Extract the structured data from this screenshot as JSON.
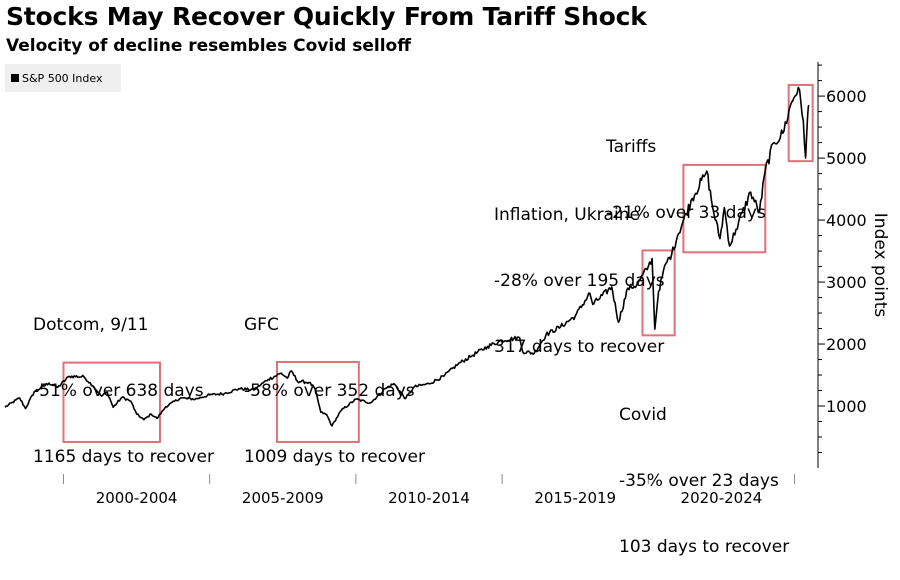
{
  "title": "Stocks May Recover Quickly From Tariff Shock",
  "subtitle": "Velocity of decline resembles Covid selloff",
  "legend": {
    "label": "S&P 500 Index",
    "color": "#000000"
  },
  "colors": {
    "line": "#000000",
    "box": "#e0707a",
    "axis": "#000000"
  },
  "chart_data": {
    "type": "line",
    "title": "Stocks May Recover Quickly From Tariff Shock",
    "subtitle": "Velocity of decline resembles Covid selloff",
    "xlabel": "",
    "ylabel": "Index points",
    "xlim": [
      1998.0,
      2025.7
    ],
    "ylim": [
      0,
      6550
    ],
    "y_ticks": [
      1000,
      2000,
      3000,
      4000,
      5000,
      6000
    ],
    "x_tick_labels": [
      {
        "label": "2000-2004",
        "center": 2002.5
      },
      {
        "label": "2005-2009",
        "center": 2007.5
      },
      {
        "label": "2010-2014",
        "center": 2012.5
      },
      {
        "label": "2015-2019",
        "center": 2017.5
      },
      {
        "label": "2020-2024",
        "center": 2022.5
      }
    ],
    "series": [
      {
        "name": "S&P 500 Index",
        "points": [
          [
            1998.0,
            980
          ],
          [
            1998.5,
            1130
          ],
          [
            1998.7,
            960
          ],
          [
            1999.0,
            1230
          ],
          [
            1999.5,
            1370
          ],
          [
            1999.8,
            1300
          ],
          [
            2000.2,
            1480
          ],
          [
            2000.7,
            1470
          ],
          [
            2001.0,
            1330
          ],
          [
            2001.3,
            1160
          ],
          [
            2001.5,
            1220
          ],
          [
            2001.7,
            980
          ],
          [
            2002.0,
            1140
          ],
          [
            2002.3,
            1080
          ],
          [
            2002.5,
            870
          ],
          [
            2002.75,
            780
          ],
          [
            2003.0,
            870
          ],
          [
            2003.2,
            800
          ],
          [
            2003.5,
            990
          ],
          [
            2004.0,
            1130
          ],
          [
            2004.5,
            1110
          ],
          [
            2005.0,
            1180
          ],
          [
            2005.5,
            1200
          ],
          [
            2006.0,
            1280
          ],
          [
            2006.5,
            1260
          ],
          [
            2007.0,
            1430
          ],
          [
            2007.45,
            1530
          ],
          [
            2007.65,
            1450
          ],
          [
            2007.8,
            1565
          ],
          [
            2008.0,
            1400
          ],
          [
            2008.4,
            1380
          ],
          [
            2008.6,
            1280
          ],
          [
            2008.8,
            900
          ],
          [
            2009.0,
            860
          ],
          [
            2009.18,
            680
          ],
          [
            2009.5,
            930
          ],
          [
            2010.0,
            1110
          ],
          [
            2010.5,
            1050
          ],
          [
            2011.0,
            1280
          ],
          [
            2011.3,
            1360
          ],
          [
            2011.7,
            1120
          ],
          [
            2012.0,
            1310
          ],
          [
            2012.5,
            1360
          ],
          [
            2013.0,
            1480
          ],
          [
            2013.5,
            1680
          ],
          [
            2014.0,
            1820
          ],
          [
            2014.5,
            1960
          ],
          [
            2015.0,
            2060
          ],
          [
            2015.6,
            2100
          ],
          [
            2015.7,
            1880
          ],
          [
            2016.1,
            1850
          ],
          [
            2016.5,
            2150
          ],
          [
            2017.0,
            2280
          ],
          [
            2017.5,
            2450
          ],
          [
            2018.0,
            2820
          ],
          [
            2018.1,
            2640
          ],
          [
            2018.75,
            2920
          ],
          [
            2018.98,
            2350
          ],
          [
            2019.3,
            2900
          ],
          [
            2019.6,
            2950
          ],
          [
            2020.0,
            3250
          ],
          [
            2020.13,
            3380
          ],
          [
            2020.22,
            2240
          ],
          [
            2020.35,
            2850
          ],
          [
            2020.6,
            3300
          ],
          [
            2020.8,
            3450
          ],
          [
            2021.0,
            3750
          ],
          [
            2021.5,
            4350
          ],
          [
            2021.9,
            4700
          ],
          [
            2022.0,
            4790
          ],
          [
            2022.2,
            4200
          ],
          [
            2022.45,
            3700
          ],
          [
            2022.6,
            4200
          ],
          [
            2022.78,
            3580
          ],
          [
            2023.0,
            3850
          ],
          [
            2023.5,
            4450
          ],
          [
            2023.8,
            4120
          ],
          [
            2024.0,
            4800
          ],
          [
            2024.3,
            5250
          ],
          [
            2024.6,
            5400
          ],
          [
            2024.9,
            5900
          ],
          [
            2025.13,
            6140
          ],
          [
            2025.3,
            5600
          ],
          [
            2025.38,
            5000
          ],
          [
            2025.45,
            5700
          ],
          [
            2025.5,
            5850
          ]
        ]
      }
    ],
    "highlight_boxes": [
      {
        "name": "dotcom",
        "x0": 2000.0,
        "x1": 2003.3,
        "y0": 420,
        "y1": 1700
      },
      {
        "name": "gfc",
        "x0": 2007.3,
        "x1": 2010.1,
        "y0": 420,
        "y1": 1710
      },
      {
        "name": "covid",
        "x0": 2019.8,
        "x1": 2020.9,
        "y0": 2140,
        "y1": 3510
      },
      {
        "name": "inflation",
        "x0": 2021.2,
        "x1": 2024.0,
        "y0": 3480,
        "y1": 4890
      },
      {
        "name": "tariffs",
        "x0": 2024.8,
        "x1": 2025.62,
        "y0": 4950,
        "y1": 6180
      }
    ],
    "annotations": [
      {
        "name": "dotcom",
        "lines": [
          "Dotcom, 9/11",
          "-51% over 638 days",
          "1165 days to recover"
        ]
      },
      {
        "name": "gfc",
        "lines": [
          "GFC",
          "-58% over 352 days",
          "1009 days to recover"
        ]
      },
      {
        "name": "inflation",
        "lines": [
          "Inflation, Ukraine",
          "-28% over 195 days",
          "317 days to recover"
        ]
      },
      {
        "name": "covid",
        "lines": [
          "Covid",
          "-35% over 23 days",
          "103 days to recover"
        ]
      },
      {
        "name": "tariffs",
        "lines": [
          "Tariffs",
          "-21% over 33 days"
        ]
      }
    ]
  }
}
